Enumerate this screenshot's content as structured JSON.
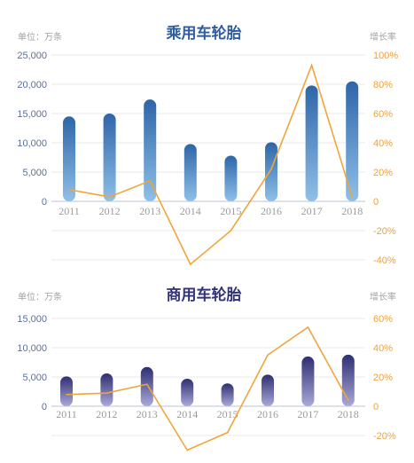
{
  "chart_data": [
    {
      "type": "bar",
      "title": "乘用车轮胎",
      "left_unit_label": "单位：万条",
      "right_unit_label": "增长率",
      "categories": [
        "2011",
        "2012",
        "2013",
        "2014",
        "2015",
        "2016",
        "2017",
        "2018"
      ],
      "series": [
        {
          "axis": "left",
          "type": "bar",
          "values": [
            14500,
            15000,
            17400,
            9800,
            7800,
            10100,
            19800,
            20500
          ]
        },
        {
          "axis": "right",
          "type": "line",
          "values": [
            8,
            3,
            14,
            -43,
            -20,
            22,
            93,
            3
          ]
        }
      ],
      "y_left": {
        "ylim": [
          0,
          25000
        ],
        "ticks": [
          "0",
          "5,000",
          "10,000",
          "15,000",
          "20,000",
          "25,000"
        ]
      },
      "y_right": {
        "ylim": [
          -40,
          100
        ],
        "ticks": [
          "-40%",
          "-20%",
          "0",
          "20%",
          "40%",
          "60%",
          "80%",
          "100%"
        ]
      },
      "colors": {
        "bar_top": "#2e65a8",
        "bar_bottom": "#8fc0e8",
        "line": "#f0a53b",
        "title": "#2d5d9f"
      }
    },
    {
      "type": "bar",
      "title": "商用车轮胎",
      "left_unit_label": "单位：万条",
      "right_unit_label": "增长率",
      "categories": [
        "2011",
        "2012",
        "2013",
        "2014",
        "2015",
        "2016",
        "2017",
        "2018"
      ],
      "series": [
        {
          "axis": "left",
          "type": "bar",
          "values": [
            5100,
            5600,
            6700,
            4700,
            3900,
            5400,
            8500,
            8800
          ]
        },
        {
          "axis": "right",
          "type": "line",
          "values": [
            8,
            9,
            15,
            -30,
            -18,
            35,
            54,
            4
          ]
        }
      ],
      "y_left": {
        "ylim": [
          0,
          15000
        ],
        "ticks": [
          "0",
          "5,000",
          "10,000",
          "15,000"
        ]
      },
      "y_right": {
        "ylim": [
          -20,
          60
        ],
        "ticks": [
          "-20%",
          "0",
          "20%",
          "40%",
          "60%"
        ]
      },
      "colors": {
        "bar_top": "#2f2e72",
        "bar_bottom": "#a9a9d8",
        "line": "#f0a53b",
        "title": "#32327a"
      }
    }
  ]
}
